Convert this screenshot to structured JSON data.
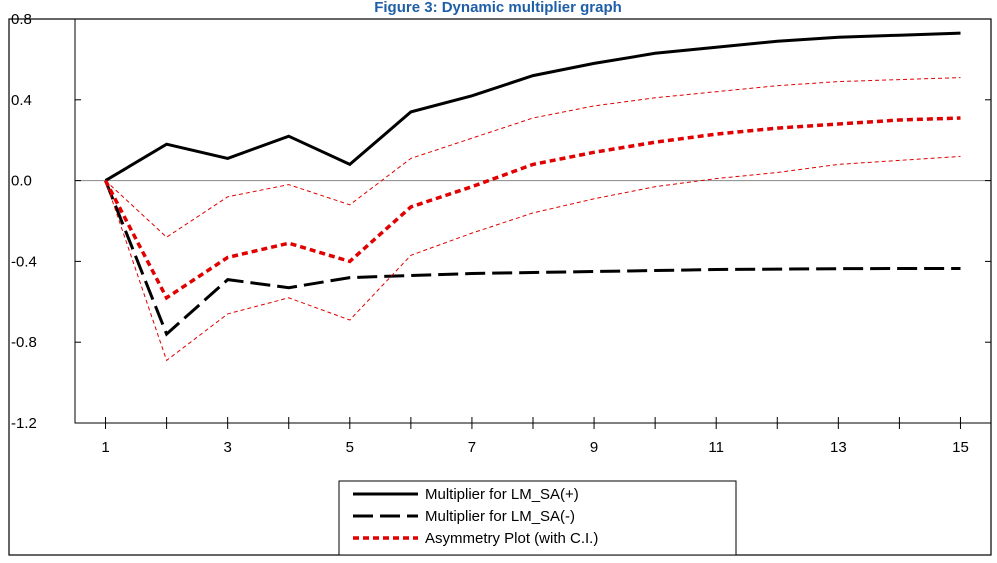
{
  "chart_data": {
    "type": "line",
    "title": "Figure 3: Dynamic multiplier graph",
    "x": [
      1,
      2,
      3,
      4,
      5,
      6,
      7,
      8,
      9,
      10,
      11,
      12,
      13,
      14,
      15
    ],
    "x_tick_labels": [
      "1",
      "3",
      "5",
      "7",
      "9",
      "11",
      "13",
      "15"
    ],
    "y_tick_labels": [
      "0.8",
      "0.4",
      "0.0",
      "-0.4",
      "-0.8",
      "-1.2"
    ],
    "ylim": [
      -1.2,
      0.8
    ],
    "xlim": [
      0.5,
      15.5
    ],
    "zero_line": true,
    "legend_position": "bottom-center",
    "series": [
      {
        "name": "Multiplier for LM_SA(+)",
        "style": "solid",
        "color": "#000000",
        "values": [
          0.0,
          0.18,
          0.11,
          0.22,
          0.08,
          0.34,
          0.42,
          0.52,
          0.58,
          0.63,
          0.66,
          0.69,
          0.71,
          0.72,
          0.73
        ]
      },
      {
        "name": "Multiplier for LM_SA(-)",
        "style": "long-dash",
        "color": "#000000",
        "values": [
          0.0,
          -0.76,
          -0.49,
          -0.53,
          -0.48,
          -0.47,
          -0.46,
          -0.455,
          -0.45,
          -0.445,
          -0.44,
          -0.438,
          -0.436,
          -0.435,
          -0.435
        ]
      },
      {
        "name": "Asymmetry Plot (with C.I.)",
        "style": "short-dash",
        "color": "#e00000",
        "values": [
          0.0,
          -0.58,
          -0.38,
          -0.31,
          -0.4,
          -0.13,
          -0.03,
          0.08,
          0.14,
          0.19,
          0.23,
          0.26,
          0.28,
          0.3,
          0.31
        ]
      },
      {
        "style": "thin-dash",
        "color": "#e00000",
        "values": [
          0.0,
          -0.28,
          -0.08,
          -0.02,
          -0.12,
          0.11,
          0.21,
          0.31,
          0.37,
          0.41,
          0.44,
          0.47,
          0.49,
          0.5,
          0.51
        ]
      },
      {
        "style": "thin-dash",
        "color": "#e00000",
        "values": [
          0.0,
          -0.89,
          -0.66,
          -0.58,
          -0.69,
          -0.37,
          -0.26,
          -0.16,
          -0.09,
          -0.03,
          0.01,
          0.04,
          0.08,
          0.1,
          0.12
        ]
      }
    ]
  }
}
